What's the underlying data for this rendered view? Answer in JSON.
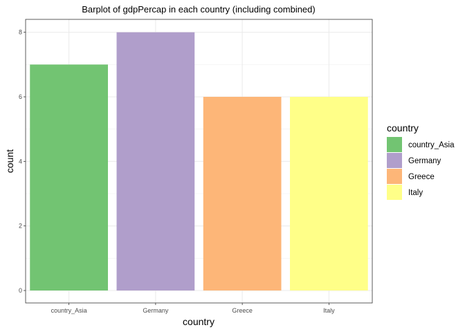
{
  "chart_data": {
    "type": "bar",
    "title": "Barplot of gdpPercap in each country (including combined)",
    "xlabel": "country",
    "ylabel": "count",
    "categories": [
      "country_Asia",
      "Germany",
      "Greece",
      "Italy"
    ],
    "values": [
      7,
      8,
      6,
      6
    ],
    "colors": [
      "#72c472",
      "#b09ecb",
      "#fdb678",
      "#ffff88"
    ],
    "ylim": [
      0,
      8.4
    ],
    "yticks": [
      0,
      2,
      4,
      6,
      8
    ],
    "grid": true,
    "legend": {
      "title": "country",
      "placement": "right",
      "entries": [
        "country_Asia",
        "Germany",
        "Greece",
        "Italy"
      ]
    }
  }
}
